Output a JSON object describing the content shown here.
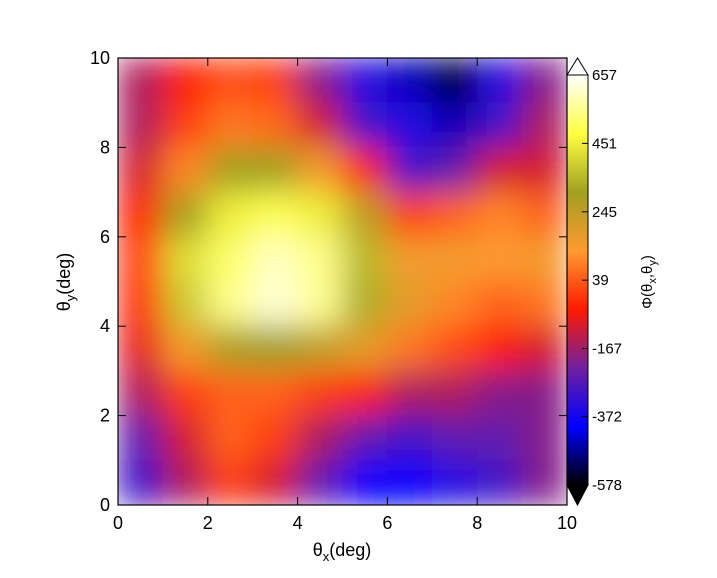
{
  "chart_data": {
    "type": "heatmap",
    "xlabel": [
      "θ",
      "x",
      "(deg)"
    ],
    "ylabel": [
      "θ",
      "y",
      "(deg)"
    ],
    "colorbar_label": [
      "Φ(θ",
      "x",
      ",θ",
      "y",
      ")"
    ],
    "x": [
      0.5,
      1.5,
      2.5,
      3.5,
      4.5,
      5.5,
      6.5,
      7.5,
      8.5,
      9.5
    ],
    "y": [
      9.5,
      8.5,
      7.5,
      6.5,
      5.5,
      4.5,
      3.5,
      2.5,
      1.5,
      0.5
    ],
    "z": [
      [
        -150,
        -50,
        20,
        0,
        -200,
        -350,
        -450,
        -550,
        -350,
        -200
      ],
      [
        -150,
        0,
        80,
        60,
        -100,
        -300,
        -350,
        -450,
        -300,
        -150
      ],
      [
        -100,
        100,
        300,
        300,
        150,
        -50,
        -300,
        -250,
        -100,
        -100
      ],
      [
        -50,
        300,
        450,
        500,
        450,
        250,
        0,
        50,
        100,
        50
      ],
      [
        0,
        420,
        520,
        600,
        550,
        350,
        150,
        150,
        130,
        150
      ],
      [
        -20,
        380,
        550,
        620,
        560,
        330,
        180,
        100,
        50,
        80
      ],
      [
        -80,
        150,
        280,
        300,
        250,
        180,
        80,
        20,
        -50,
        -100
      ],
      [
        -150,
        0,
        50,
        50,
        0,
        -50,
        -150,
        -150,
        -200,
        -200
      ],
      [
        -250,
        -100,
        50,
        0,
        -150,
        -250,
        -300,
        -250,
        -250,
        -200
      ],
      [
        -300,
        -150,
        0,
        -100,
        -250,
        -400,
        -400,
        -350,
        -300,
        -200
      ]
    ],
    "xlim": [
      0,
      10
    ],
    "ylim": [
      0,
      10
    ],
    "xticks": [
      0,
      2,
      4,
      6,
      8,
      10
    ],
    "yticks": [
      0,
      2,
      4,
      6,
      8,
      10
    ],
    "zlim": [
      -578,
      657
    ],
    "cbar_ticks": [
      657,
      451,
      245,
      39,
      -167,
      -372,
      -578
    ],
    "colormap": [
      "#000000",
      "#0000ff",
      "#7020a0",
      "#ff1a00",
      "#ff9a30",
      "#a0a020",
      "#ffff40",
      "#ffffff"
    ]
  }
}
